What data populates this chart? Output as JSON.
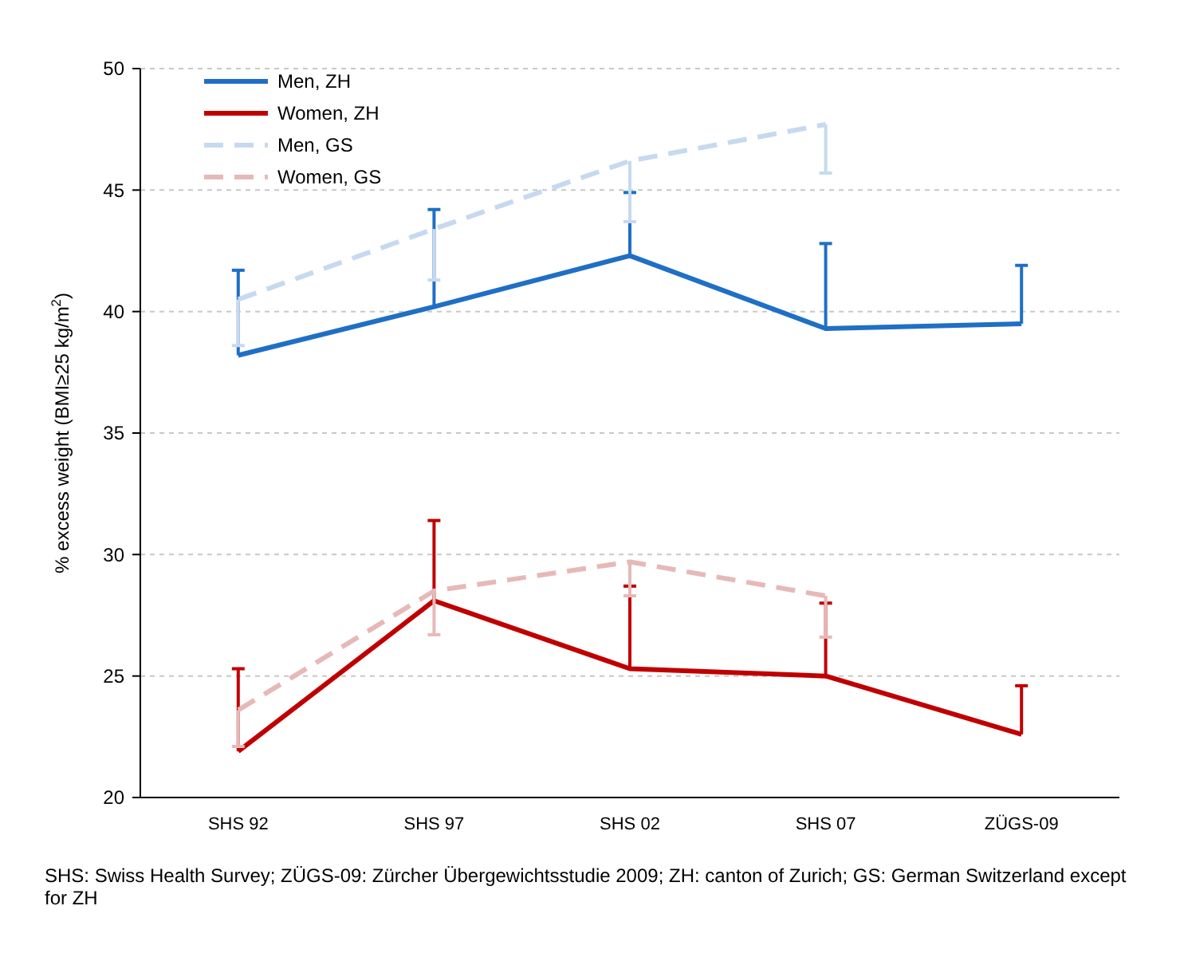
{
  "chart_data": {
    "type": "line",
    "ylabel": "% excess weight (BMI≥25 kg/m$^{2}$)",
    "categories": [
      "SHS 92",
      "SHS 97",
      "SHS 02",
      "SHS 07",
      "ZÜGS-09"
    ],
    "ylim": [
      20,
      50
    ],
    "yticks": [
      20,
      25,
      30,
      35,
      40,
      45,
      50
    ],
    "grid": "y",
    "legend": "top left",
    "marker": "none",
    "series": [
      {
        "name": "Men, ZH",
        "color": "#1f6fc5",
        "line_style": "solid",
        "values": [
          38.2,
          40.2,
          42.3,
          39.3,
          39.5
        ],
        "errors": [
          [
            38.2,
            41.7
          ],
          [
            40.2,
            44.2
          ],
          [
            42.3,
            44.9
          ],
          [
            39.3,
            42.8
          ],
          [
            39.5,
            41.9
          ]
        ]
      },
      {
        "name": "Women, ZH",
        "color": "#c00000",
        "line_style": "solid",
        "values": [
          21.9,
          28.1,
          25.3,
          25.0,
          22.6
        ],
        "errors": [
          [
            21.9,
            25.3
          ],
          [
            28.1,
            31.4
          ],
          [
            25.3,
            28.7
          ],
          [
            25.0,
            28.0
          ],
          [
            22.6,
            24.6
          ]
        ]
      },
      {
        "name": "Men, GS",
        "color": "#c6d9f0",
        "line_style": "dashed",
        "values": [
          40.5,
          43.4,
          46.2,
          47.7,
          null
        ],
        "errors": [
          [
            38.6,
            40.5
          ],
          [
            41.3,
            43.4
          ],
          [
            43.7,
            46.2
          ],
          [
            45.7,
            47.7
          ],
          null
        ]
      },
      {
        "name": "Women, GS",
        "color": "#e6b9b8",
        "line_style": "dashed",
        "values": [
          23.6,
          28.5,
          29.7,
          28.3,
          null
        ],
        "errors": [
          [
            22.1,
            23.6
          ],
          [
            26.7,
            28.5
          ],
          [
            28.3,
            29.7
          ],
          [
            26.6,
            28.3
          ],
          null
        ]
      }
    ],
    "annotations": [
      "SHS: Swiss Health Survey; ZÜGS-09: Zürcher Übergewichtsstudie 2009; ZH: canton of Zurich; GS: German Switzerland except for ZH"
    ]
  }
}
